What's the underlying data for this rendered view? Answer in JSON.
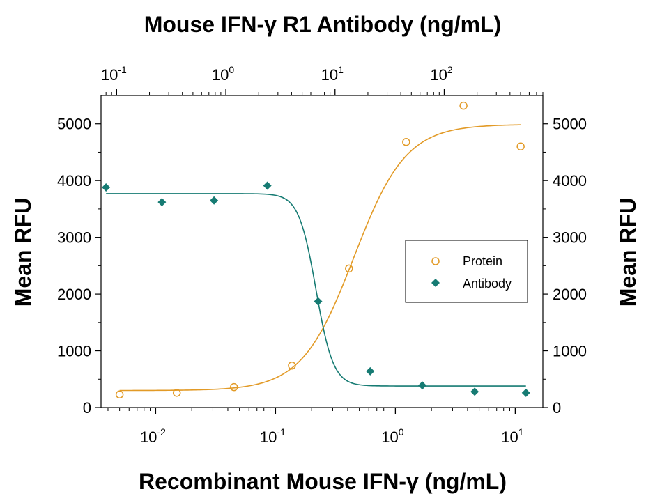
{
  "chart_data": {
    "type": "scatter",
    "title_top": "Mouse IFN-γ R1 Antibody (ng/mL)",
    "xlabel": "Recombinant Mouse IFN-γ (ng/mL)",
    "ylabel_left": "Mean RFU",
    "ylabel_right": "Mean RFU",
    "x_scale": "log",
    "x_top_scale": "log",
    "xlim": [
      0.0035,
      17
    ],
    "x_top_lim": [
      0.072,
      800
    ],
    "ylim": [
      0,
      5500
    ],
    "y_ticks": [
      0,
      1000,
      2000,
      3000,
      4000,
      5000
    ],
    "y_tick_labels": [
      "0",
      "1000",
      "2000",
      "3000",
      "4000",
      "5000"
    ],
    "x_bottom_ticks": [
      {
        "value": 0.01,
        "base": "10",
        "exp": "-2"
      },
      {
        "value": 0.1,
        "base": "10",
        "exp": "-1"
      },
      {
        "value": 1,
        "base": "10",
        "exp": "0"
      },
      {
        "value": 10,
        "base": "10",
        "exp": "1"
      }
    ],
    "x_top_ticks": [
      {
        "value": 0.1,
        "base": "10",
        "exp": "-1"
      },
      {
        "value": 1,
        "base": "10",
        "exp": "0"
      },
      {
        "value": 10,
        "base": "10",
        "exp": "1"
      },
      {
        "value": 100,
        "base": "10",
        "exp": "2"
      }
    ],
    "legend_position": "right",
    "series": [
      {
        "name": "Protein",
        "axis": "bottom",
        "marker": "open-circle",
        "color": "#e29a26",
        "points": [
          {
            "x": 0.005,
            "y": 230
          },
          {
            "x": 0.015,
            "y": 260
          },
          {
            "x": 0.045,
            "y": 360
          },
          {
            "x": 0.137,
            "y": 740
          },
          {
            "x": 0.41,
            "y": 2450
          },
          {
            "x": 1.23,
            "y": 4680
          },
          {
            "x": 3.7,
            "y": 5320
          },
          {
            "x": 11.1,
            "y": 4600
          }
        ],
        "fit": {
          "bottom": 300,
          "top": 4990,
          "ec50": 0.45,
          "hill": 2.0
        }
      },
      {
        "name": "Antibody",
        "axis": "top",
        "marker": "filled-diamond",
        "color": "#167b73",
        "points": [
          {
            "x": 0.08,
            "y": 3880
          },
          {
            "x": 0.26,
            "y": 3620
          },
          {
            "x": 0.78,
            "y": 3650
          },
          {
            "x": 2.4,
            "y": 3910
          },
          {
            "x": 7.0,
            "y": 1870
          },
          {
            "x": 21,
            "y": 640
          },
          {
            "x": 63,
            "y": 390
          },
          {
            "x": 190,
            "y": 280
          },
          {
            "x": 560,
            "y": 260
          }
        ],
        "fit": {
          "bottom": 380,
          "top": 3770,
          "ic50": 6.7,
          "hill": 5.5
        }
      }
    ]
  }
}
